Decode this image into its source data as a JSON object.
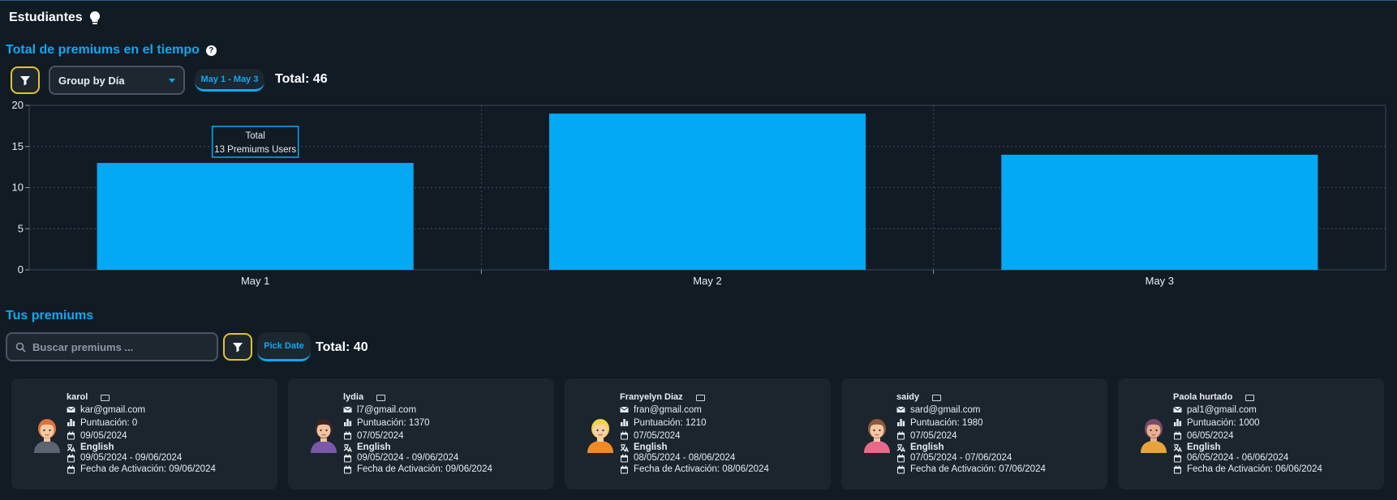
{
  "page": {
    "title": "Estudiantes",
    "title_icon": "lightbulb-icon"
  },
  "chart_section": {
    "title": "Total de premiums en el tiempo",
    "help_glyph": "?",
    "group_by": "Group by Día",
    "date_range": "May 1 - May 3",
    "total": "Total: 46",
    "tooltip": {
      "title": "Total",
      "text": "13 Premiums Users"
    }
  },
  "chart_data": {
    "type": "bar",
    "categories": [
      "May 1",
      "May 2",
      "May 3"
    ],
    "values": [
      13,
      19,
      14
    ],
    "ylim": [
      0,
      20
    ],
    "yticks": [
      "0",
      "5",
      "10",
      "15",
      "20"
    ],
    "grid": true,
    "bar_color": "#03a9f4"
  },
  "list_section": {
    "title": "Tus premiums",
    "search_placeholder": "Buscar premiums ...",
    "pick_date": "Pick Date",
    "total": "Total: 40"
  },
  "cards": [
    {
      "name": "karol",
      "email": "kar@gmail.com",
      "score": "Puntuación: 0",
      "date": "09/05/2024",
      "language": "English",
      "period": "09/05/2024 - 09/06/2024",
      "activation": "Fecha de Activación: 09/06/2024",
      "avatar": "avatar-red-hair"
    },
    {
      "name": "lydia",
      "email": "l7@gmail.com",
      "score": "Puntuación: 1370",
      "date": "07/05/2024",
      "language": "English",
      "period": "09/05/2024 - 09/06/2024",
      "activation": "Fecha de Activación: 09/06/2024",
      "avatar": "avatar-dark-hair"
    },
    {
      "name": "Franyelyn Diaz",
      "email": "fran@gmail.com",
      "score": "Puntuación: 1210",
      "date": "07/05/2024",
      "language": "English",
      "period": "08/05/2024 - 08/06/2024",
      "activation": "Fecha de Activación: 08/06/2024",
      "avatar": "avatar-blonde"
    },
    {
      "name": "saidy",
      "email": "sard@gmail.com",
      "score": "Puntuación: 1980",
      "date": "07/05/2024",
      "language": "English",
      "period": "07/05/2024 - 07/06/2024",
      "activation": "Fecha de Activación: 07/06/2024",
      "avatar": "avatar-brown-hair"
    },
    {
      "name": "Paola hurtado",
      "email": "pal1@gmail.com",
      "score": "Puntuación: 1000",
      "date": "06/05/2024",
      "language": "English",
      "period": "06/05/2024 - 06/06/2024",
      "activation": "Fecha de Activación: 06/06/2024",
      "avatar": "avatar-purple-hair"
    }
  ]
}
